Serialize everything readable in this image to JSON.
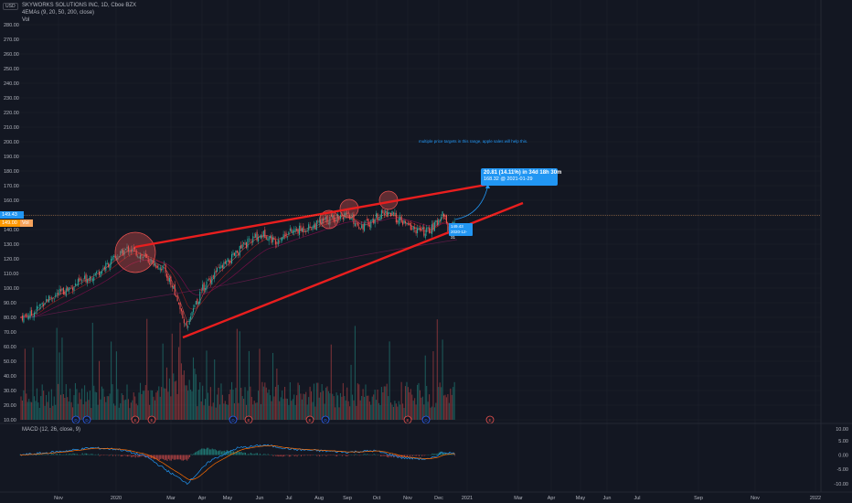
{
  "header": {
    "currency": "USD",
    "symbol_line": "SKYWORKS SOLUTIONS INC, 1D, Cboe BZX",
    "ema_line": "4EMAs (9, 20, 50, 200, close)",
    "vol_line": "Vol"
  },
  "price_axis": {
    "ticks": [
      "280.00",
      "270.00",
      "260.00",
      "250.00",
      "240.00",
      "230.00",
      "220.00",
      "210.00",
      "200.00",
      "190.00",
      "180.00",
      "170.00",
      "160.00",
      "150.00",
      "140.00",
      "130.00",
      "120.00",
      "110.00",
      "100.00",
      "90.00",
      "80.00",
      "70.00",
      "60.00",
      "50.00",
      "40.00",
      "30.00",
      "20.00",
      "10.00"
    ],
    "last_price_label": "149.43",
    "secondary_labels": [
      "149.00",
      "Vol"
    ]
  },
  "macd": {
    "label": "MACD (12, 26, close, 9)",
    "ticks": [
      "10.00",
      "5.00",
      "0.00",
      "-5.00",
      "-10.00"
    ]
  },
  "time_axis": [
    "Nov",
    "2020",
    "Mar",
    "Apr",
    "May",
    "Jun",
    "Jul",
    "Aug",
    "Sep",
    "Oct",
    "Nov",
    "Dec",
    "2021",
    "Mar",
    "Apr",
    "May",
    "Jun",
    "Jul",
    "Sep",
    "Nov",
    "2022"
  ],
  "annotations": {
    "note": "multiple price targets in this range, apple sales will help this.",
    "measure_main": "20.81 (14.11%) in 34d 18h 30m",
    "measure_sub": "168.32 @ 2021-01-29",
    "small_main": "149.43",
    "small_sub": "2020-12-31"
  },
  "colors": {
    "background": "#131722",
    "trendline": "#e91e1e",
    "up": "#26a69a",
    "down": "#ef5350",
    "accent": "#2196f3",
    "price_tag": "#2196f3",
    "ema_tag": "#ff9800"
  },
  "event_markers": [
    "D",
    "D",
    "E",
    "E",
    "D",
    "E",
    "E",
    "D",
    "E",
    "D",
    "E",
    "D",
    "E"
  ],
  "chart_data": {
    "type": "candlestick",
    "title": "SKYWORKS SOLUTIONS INC, 1D, Cboe BZX",
    "ylabel": "USD",
    "ylim": [
      5,
      285
    ],
    "x": [
      "2019-10",
      "2019-11",
      "2019-12",
      "2020-01",
      "2020-02",
      "2020-03",
      "2020-04",
      "2020-05",
      "2020-06",
      "2020-07",
      "2020-08",
      "2020-09",
      "2020-10",
      "2020-11",
      "2020-12"
    ],
    "close": [
      80,
      95,
      112,
      125,
      115,
      80,
      105,
      118,
      130,
      140,
      145,
      145,
      150,
      140,
      149.43
    ],
    "series": [
      {
        "name": "4EMAs (9, 20, 50, 200, close)",
        "type": "ema"
      },
      {
        "name": "Vol",
        "type": "volume"
      }
    ],
    "last_price": 149.43
  }
}
